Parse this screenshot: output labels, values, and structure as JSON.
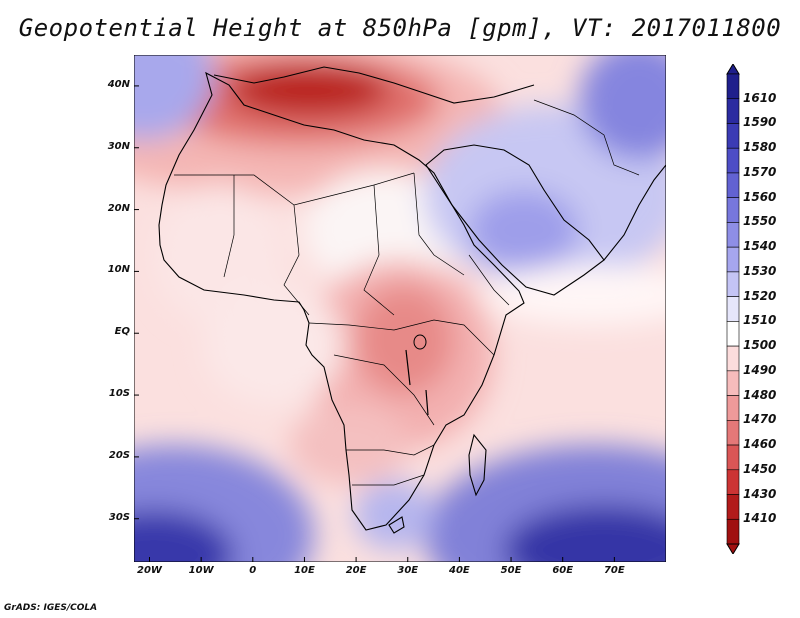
{
  "title": "Geopotential Height at 850hPa [gpm], VT: 2017011800",
  "credit": "GrADS: IGES/COLA",
  "map": {
    "region": "Africa and Middle East",
    "lon_range": [
      -23,
      80
    ],
    "lat_range": [
      -37,
      45
    ],
    "lat_ticks": [
      {
        "lat": 40,
        "label": "40N"
      },
      {
        "lat": 30,
        "label": "30N"
      },
      {
        "lat": 20,
        "label": "20N"
      },
      {
        "lat": 10,
        "label": "10N"
      },
      {
        "lat": 0,
        "label": "EQ"
      },
      {
        "lat": -10,
        "label": "10S"
      },
      {
        "lat": -20,
        "label": "20S"
      },
      {
        "lat": -30,
        "label": "30S"
      }
    ],
    "lon_ticks": [
      {
        "lon": -20,
        "label": "20W"
      },
      {
        "lon": -10,
        "label": "10W"
      },
      {
        "lon": 0,
        "label": "0"
      },
      {
        "lon": 10,
        "label": "10E"
      },
      {
        "lon": 20,
        "label": "20E"
      },
      {
        "lon": 30,
        "label": "30E"
      },
      {
        "lon": 40,
        "label": "40E"
      },
      {
        "lon": 50,
        "label": "50E"
      },
      {
        "lon": 60,
        "label": "60E"
      },
      {
        "lon": 70,
        "label": "70E"
      }
    ]
  },
  "chart_data": {
    "type": "heatmap",
    "title": "Geopotential Height at 850hPa [gpm], VT: 2017011800",
    "variable": "Geopotential Height",
    "level": "850hPa",
    "units": "gpm",
    "valid_time": "2017011800",
    "colorbar": {
      "levels": [
        "1610",
        "1590",
        "1580",
        "1570",
        "1560",
        "1550",
        "1540",
        "1530",
        "1520",
        "1510",
        "1500",
        "1490",
        "1480",
        "1470",
        "1460",
        "1450",
        "1430",
        "1410"
      ],
      "colors": [
        "#1f1f8c",
        "#2b2ba0",
        "#3b3bb4",
        "#4d4dc6",
        "#6262d2",
        "#7777dc",
        "#8e8ee6",
        "#a6a6ee",
        "#c4c4f5",
        "#e6e6fb",
        "#ffffff",
        "#fcdcdc",
        "#f6bcbc",
        "#ee9a9a",
        "#e47878",
        "#da5656",
        "#cc3434",
        "#b21b1b",
        "#a01010"
      ]
    }
  }
}
